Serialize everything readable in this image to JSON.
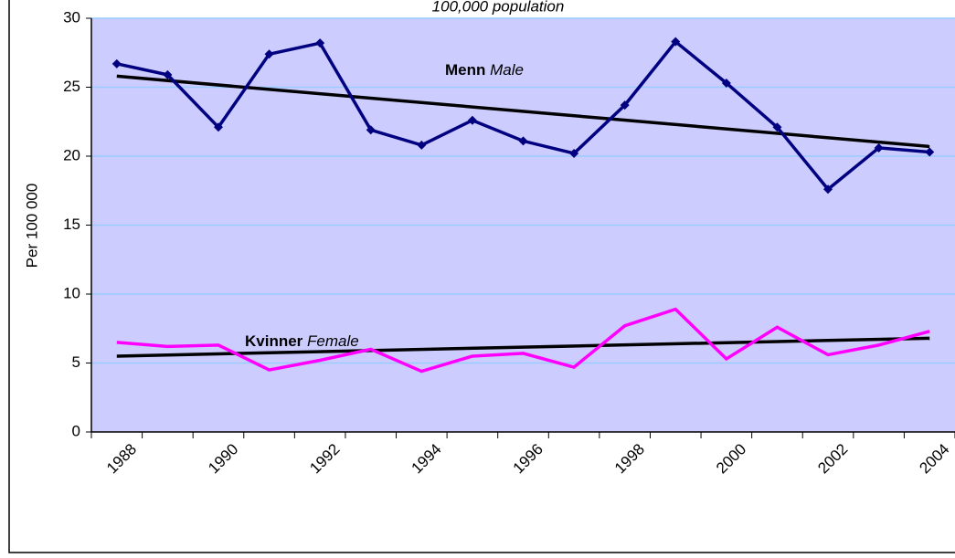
{
  "chart_data": {
    "type": "line",
    "title": "100,000 population",
    "y_label": "Per 100 000",
    "categories": [
      "1988",
      null,
      "1990",
      null,
      "1992",
      null,
      "1994",
      null,
      "1996",
      null,
      "1998",
      null,
      "2000",
      null,
      "2002",
      null,
      "2004"
    ],
    "series": [
      {
        "name": "Menn",
        "name_en": "Male",
        "color": "#000080",
        "marker": "diamond",
        "values": [
          26.7,
          25.9,
          22.1,
          27.4,
          28.2,
          21.9,
          20.8,
          22.6,
          21.1,
          20.2,
          23.7,
          28.3,
          25.3,
          22.1,
          17.6,
          20.6,
          20.3
        ]
      },
      {
        "name": "Kvinner",
        "name_en": "Female",
        "color": "#ff00ff",
        "values": [
          6.5,
          6.2,
          6.3,
          4.5,
          5.2,
          6.0,
          4.4,
          5.5,
          5.7,
          4.7,
          7.7,
          8.9,
          5.3,
          7.6,
          5.6,
          6.3,
          7.3
        ]
      }
    ],
    "trendlines": [
      {
        "color": "#000000",
        "values": [
          25.8,
          20.7
        ]
      },
      {
        "color": "#000000",
        "values": [
          5.5,
          6.8
        ]
      }
    ],
    "ylim": [
      0,
      30
    ],
    "yticks": [
      0,
      5,
      10,
      15,
      20,
      25,
      30
    ],
    "grid": true,
    "background": "#ccccff",
    "grid_color": "#99ccff"
  }
}
